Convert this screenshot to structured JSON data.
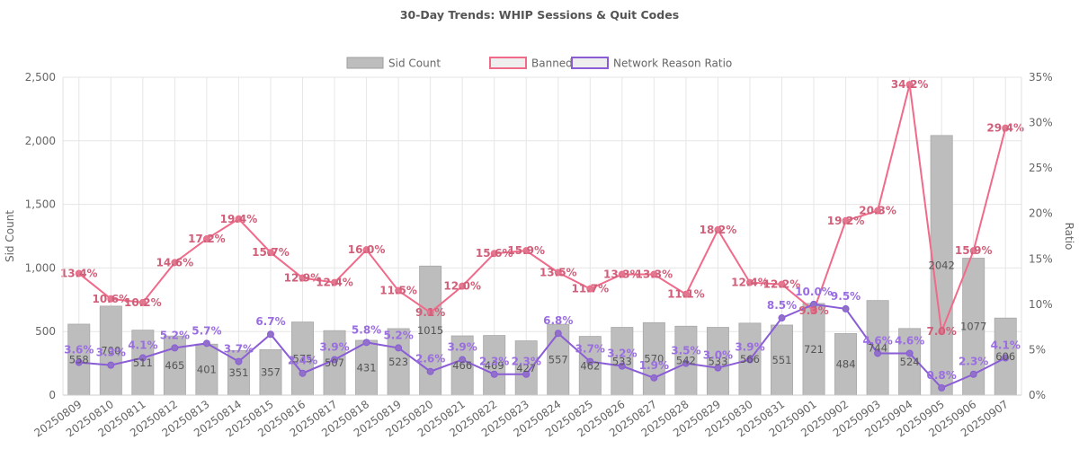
{
  "chart_data": {
    "type": "bar",
    "title": "30-Day Trends: WHIP Sessions & Quit Codes",
    "ylabel": "Sid Count",
    "y2label": "Ratio",
    "ylim": [
      0,
      2500
    ],
    "y2lim": [
      0,
      35
    ],
    "yticks": [
      "0",
      "500",
      "1,000",
      "1,500",
      "2,000",
      "2,500"
    ],
    "y2ticks": [
      "0%",
      "5%",
      "10%",
      "15%",
      "20%",
      "25%",
      "30%",
      "35%"
    ],
    "grid": true,
    "legend_position": "top-center",
    "categories": [
      "20250809",
      "20250810",
      "20250811",
      "20250812",
      "20250813",
      "20250814",
      "20250815",
      "20250816",
      "20250817",
      "20250818",
      "20250819",
      "20250820",
      "20250821",
      "20250822",
      "20250823",
      "20250824",
      "20250825",
      "20250826",
      "20250827",
      "20250828",
      "20250829",
      "20250830",
      "20250831",
      "20250901",
      "20250902",
      "20250903",
      "20250904",
      "20250905",
      "20250906",
      "20250907"
    ],
    "series": [
      {
        "name": "Sid Count",
        "type": "bar",
        "axis": "left",
        "color": "#bdbdbd",
        "values": [
          558,
          700,
          511,
          465,
          401,
          351,
          357,
          575,
          507,
          431,
          523,
          1015,
          466,
          469,
          427,
          557,
          462,
          533,
          570,
          542,
          533,
          566,
          551,
          721,
          484,
          744,
          524,
          2042,
          1077,
          606
        ],
        "labels": [
          "558",
          "700",
          "511",
          "465",
          "401",
          "351",
          "357",
          "575",
          "507",
          "431",
          "523",
          "1015",
          "466",
          "469",
          "427",
          "557",
          "462",
          "533",
          "570",
          "542",
          "533",
          "566",
          "551",
          "721",
          "484",
          "744",
          "524",
          "2042",
          "1077",
          "606"
        ]
      },
      {
        "name": "Banned Ratio",
        "type": "line",
        "axis": "right",
        "color": "#f06a8a",
        "values": [
          13.4,
          10.6,
          10.2,
          14.6,
          17.2,
          19.4,
          15.7,
          12.9,
          12.4,
          16.0,
          11.5,
          9.1,
          12.0,
          15.6,
          15.9,
          13.5,
          11.7,
          13.3,
          13.3,
          11.1,
          18.2,
          12.4,
          12.2,
          9.3,
          19.2,
          20.3,
          34.2,
          7.0,
          15.9,
          29.4
        ],
        "labels": [
          "13.4%",
          "10.6%",
          "10.2%",
          "14.6%",
          "17.2%",
          "19.4%",
          "15.7%",
          "12.9%",
          "12.4%",
          "16.0%",
          "11.5%",
          "9.1%",
          "12.0%",
          "15.6%",
          "15.9%",
          "13.5%",
          "11.7%",
          "13.3%",
          "13.3%",
          "11.1%",
          "18.2%",
          "12.4%",
          "12.2%",
          "9.3%",
          "19.2%",
          "20.3%",
          "34.2%",
          "7.0%",
          "15.9%",
          "29.4%"
        ]
      },
      {
        "name": "Network Reason Ratio",
        "type": "line",
        "axis": "right",
        "color": "#8a5cd6",
        "values": [
          3.6,
          3.3,
          4.1,
          5.2,
          5.7,
          3.7,
          6.7,
          2.4,
          3.9,
          5.8,
          5.2,
          2.6,
          3.9,
          2.3,
          2.3,
          6.8,
          3.7,
          3.2,
          1.9,
          3.5,
          3.0,
          3.9,
          8.5,
          10.0,
          9.5,
          4.6,
          4.6,
          0.8,
          2.3,
          4.1
        ],
        "labels": [
          "3.6%",
          "3.3%",
          "4.1%",
          "5.2%",
          "5.7%",
          "3.7%",
          "6.7%",
          "2.4%",
          "3.9%",
          "5.8%",
          "5.2%",
          "2.6%",
          "3.9%",
          "2.3%",
          "2.3%",
          "6.8%",
          "3.7%",
          "3.2%",
          "1.9%",
          "3.5%",
          "3.0%",
          "3.9%",
          "8.5%",
          "10.0%",
          "9.5%",
          "4.6%",
          "4.6%",
          "0.8%",
          "2.3%",
          "4.1%"
        ]
      }
    ]
  }
}
